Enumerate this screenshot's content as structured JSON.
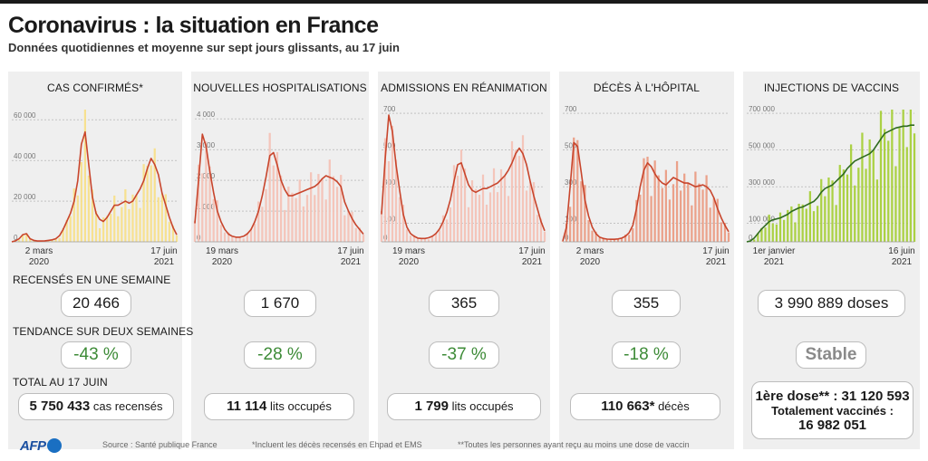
{
  "header": {
    "title": "Coronavirus : la situation en France",
    "subtitle": "Données quotidiennes et moyenne sur sept jours glissants, au 17 juin"
  },
  "rows": {
    "weekly": "RECENSÉS EN UNE SEMAINE",
    "trend": "TENDANCE SUR DEUX SEMAINES",
    "total": "TOTAL AU 17 JUIN"
  },
  "footer": {
    "logo": "AFP",
    "source": "Source : Santé publique France",
    "note1": "*Incluent les décès recensés en Ehpad et EMS",
    "note2": "**Toutes les personnes ayant reçu au moins une dose de vaccin"
  },
  "colors": {
    "bar_yellow": "#f7df8a",
    "line_red": "#c8452c",
    "bar_pink": "#f3c2b6",
    "bar_salmon": "#ea9c84",
    "bar_green": "#a7cf3a",
    "line_green": "#2f6b1f",
    "trend_green": "#3d8b37"
  },
  "panels": [
    {
      "title": "CAS CONFIRMÉS*",
      "date_start": "2 mars",
      "year_start": "2020",
      "date_end": "17 juin",
      "year_end": "2021",
      "weekly": "20 466",
      "trend": "-43 %",
      "total_value": "5 750 433",
      "total_unit": "cas recensés"
    },
    {
      "title": "NOUVELLES HOSPITALISATIONS",
      "date_start": "19 mars",
      "year_start": "2020",
      "date_end": "17 juin",
      "year_end": "2021",
      "weekly": "1 670",
      "trend": "-28 %",
      "total_value": "11 114",
      "total_unit": "lits occupés"
    },
    {
      "title": "ADMISSIONS EN RÉANIMATION",
      "date_start": "19 mars",
      "year_start": "2020",
      "date_end": "17 juin",
      "year_end": "2021",
      "weekly": "365",
      "trend": "-37 %",
      "total_value": "1 799",
      "total_unit": "lits occupés"
    },
    {
      "title": "DÉCÈS À L'HÔPITAL",
      "date_start": "2 mars",
      "year_start": "2020",
      "date_end": "17 juin",
      "year_end": "2021",
      "weekly": "355",
      "trend": "-18 %",
      "total_value": "110 663*",
      "total_unit": "décès"
    },
    {
      "title": "INJECTIONS DE VACCINS",
      "date_start": "1er janvier",
      "year_start": "2021",
      "date_end": "16 juin",
      "year_end": "2021",
      "weekly": "3 990 889 doses",
      "trend": "Stable",
      "dose_label": "1ère dose** : 31 120 593",
      "fully_label": "Totalement vaccinés :",
      "fully_value": "16 982 051"
    }
  ],
  "chart_data": [
    {
      "type": "area",
      "title": "CAS CONFIRMÉS*",
      "x_range": [
        "2 mars 2020",
        "17 juin 2021"
      ],
      "ylim": [
        0,
        65000
      ],
      "yticks": [
        0,
        20000,
        40000,
        60000
      ],
      "ytick_labels": [
        "0",
        "20 000",
        "40 000",
        "60 000"
      ],
      "series": [
        {
          "kind": "line-7day-avg",
          "values": [
            0,
            500,
            1500,
            3500,
            4000,
            1500,
            700,
            400,
            400,
            500,
            700,
            1000,
            1500,
            3000,
            6000,
            10000,
            14000,
            20000,
            30000,
            48000,
            54000,
            38000,
            22000,
            14000,
            11000,
            10000,
            12000,
            15000,
            18000,
            18000,
            19000,
            20000,
            19000,
            20000,
            23000,
            26000,
            30000,
            36000,
            41000,
            38000,
            33000,
            24000,
            18000,
            12000,
            7000,
            3500
          ]
        }
      ]
    },
    {
      "type": "area",
      "title": "NOUVELLES HOSPITALISATIONS",
      "x_range": [
        "19 mars 2020",
        "17 juin 2021"
      ],
      "ylim": [
        0,
        4300
      ],
      "yticks": [
        0,
        1000,
        2000,
        3000,
        4000
      ],
      "ytick_labels": [
        "0",
        "1 000",
        "2 000",
        "3 000",
        "4 000"
      ],
      "series": [
        {
          "kind": "line-7day-avg",
          "values": [
            600,
            2000,
            3500,
            3100,
            2300,
            1600,
            1000,
            650,
            400,
            250,
            180,
            150,
            150,
            180,
            260,
            400,
            650,
            1000,
            1500,
            2100,
            2800,
            2900,
            2500,
            2000,
            1700,
            1500,
            1500,
            1550,
            1600,
            1650,
            1700,
            1750,
            1800,
            1900,
            2050,
            2150,
            2100,
            2050,
            1950,
            1800,
            1300,
            1000,
            750,
            550,
            400,
            250
          ]
        }
      ]
    },
    {
      "type": "area",
      "title": "ADMISSIONS EN RÉANIMATION",
      "x_range": [
        "19 mars 2020",
        "17 juin 2021"
      ],
      "ylim": [
        0,
        720
      ],
      "yticks": [
        0,
        100,
        300,
        500,
        700
      ],
      "ytick_labels": [
        "0",
        "100",
        "300",
        "500",
        "700"
      ],
      "series": [
        {
          "kind": "line-7day-avg",
          "values": [
            150,
            450,
            690,
            600,
            420,
            280,
            150,
            80,
            45,
            30,
            20,
            18,
            18,
            22,
            30,
            45,
            70,
            110,
            160,
            230,
            330,
            420,
            430,
            370,
            310,
            280,
            270,
            280,
            290,
            290,
            300,
            310,
            320,
            340,
            360,
            390,
            430,
            480,
            510,
            480,
            420,
            330,
            250,
            180,
            110,
            60
          ]
        }
      ]
    },
    {
      "type": "area",
      "title": "DÉCÈS À L'HÔPITAL",
      "x_range": [
        "2 mars 2020",
        "17 juin 2021"
      ],
      "ylim": [
        0,
        720
      ],
      "yticks": [
        0,
        100,
        300,
        500,
        700
      ],
      "ytick_labels": [
        "0",
        "100",
        "300",
        "500",
        "700"
      ],
      "series": [
        {
          "kind": "line-7day-avg",
          "values": [
            5,
            80,
            300,
            540,
            520,
            380,
            230,
            140,
            80,
            45,
            25,
            18,
            15,
            14,
            14,
            16,
            20,
            30,
            50,
            90,
            180,
            300,
            390,
            430,
            410,
            370,
            340,
            320,
            310,
            330,
            350,
            340,
            330,
            320,
            320,
            310,
            300,
            305,
            310,
            300,
            280,
            240,
            180,
            130,
            90,
            55
          ]
        }
      ]
    },
    {
      "type": "bar",
      "title": "INJECTIONS DE VACCINS",
      "x_range": [
        "1er janvier 2021",
        "16 juin 2021"
      ],
      "ylim": [
        0,
        720000
      ],
      "yticks": [
        0,
        100000,
        300000,
        500000,
        700000
      ],
      "ytick_labels": [
        "0",
        "100 000",
        "300 000",
        "500 000",
        "700 000"
      ],
      "series": [
        {
          "kind": "line-7day-avg",
          "values": [
            0,
            5000,
            20000,
            45000,
            70000,
            90000,
            110000,
            120000,
            125000,
            130000,
            140000,
            150000,
            165000,
            175000,
            185000,
            190000,
            200000,
            210000,
            220000,
            240000,
            270000,
            290000,
            300000,
            310000,
            330000,
            350000,
            370000,
            400000,
            420000,
            440000,
            450000,
            460000,
            470000,
            480000,
            500000,
            530000,
            560000,
            590000,
            600000,
            610000,
            620000,
            625000,
            630000,
            630000,
            635000,
            635000
          ]
        }
      ]
    }
  ]
}
